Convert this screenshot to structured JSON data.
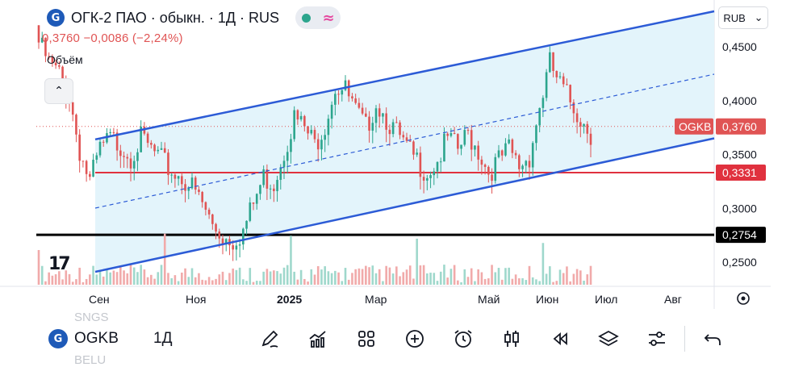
{
  "header": {
    "logo_glyph": "G",
    "title": "ОГК-2 ПАО · обыкн. · 1Д · RUS",
    "status_dot_color": "#2ca58d",
    "wave_glyph": "≈",
    "quote": "0,3760  −0,0086 (−2,24%)",
    "volume_label": "Объём",
    "collapse_glyph": "⌃"
  },
  "currency_selector": {
    "label": "RUB",
    "chevron": "⌄"
  },
  "watermark": "17",
  "ghost_text": {
    "top": "SNGS",
    "bottom": "BELU"
  },
  "chart_data": {
    "type": "candlestick",
    "price_axis": {
      "ticks": [
        {
          "value": 0.45,
          "label": "0,4500"
        },
        {
          "value": 0.4,
          "label": "0,4000"
        },
        {
          "value": 0.35,
          "label": "0,3500"
        },
        {
          "value": 0.3,
          "label": "0,3000"
        },
        {
          "value": 0.25,
          "label": "0,2500"
        }
      ]
    },
    "time_axis": {
      "ticks": [
        {
          "label": "Сен",
          "bold": false
        },
        {
          "label": "Ноя",
          "bold": false
        },
        {
          "label": "2025",
          "bold": true
        },
        {
          "label": "Мар",
          "bold": false
        },
        {
          "label": "Май",
          "bold": false
        },
        {
          "label": "Июн",
          "bold": false
        },
        {
          "label": "Июл",
          "bold": false
        },
        {
          "label": "Авг",
          "bold": false
        }
      ]
    },
    "price_labels": [
      {
        "value": 0.376,
        "text": "0,3760",
        "tag": "OGKB",
        "color": "#e05454"
      },
      {
        "value": 0.3331,
        "text": "0,3331",
        "tag": "",
        "color": "#e0313e"
      },
      {
        "value": 0.2754,
        "text": "0,2754",
        "tag": "",
        "color": "#000000"
      }
    ],
    "horizontal_lines": [
      {
        "value": 0.3331,
        "color": "#e0313e"
      },
      {
        "value": 0.2754,
        "color": "#000000"
      }
    ],
    "channel": {
      "upper": [
        [
          0.364,
          0.487
        ],
        [
          0.443,
          0.476
        ]
      ],
      "lower": [
        [
          0.252,
          0.366
        ],
        [
          0.305,
          0.367
        ]
      ],
      "mid": [
        [
          0.302,
          0.424
        ]
      ],
      "color": "#2c5bd6",
      "fill": "#e3f4fb"
    },
    "candles_close_path": [
      0.46,
      0.44,
      0.43,
      0.41,
      0.36,
      0.33,
      0.36,
      0.37,
      0.365,
      0.355,
      0.37,
      0.36,
      0.35,
      0.34,
      0.335,
      0.325,
      0.31,
      0.29,
      0.28,
      0.277,
      0.285,
      0.31,
      0.335,
      0.33,
      0.36,
      0.39,
      0.38,
      0.365,
      0.385,
      0.42,
      0.415,
      0.395,
      0.38,
      0.405,
      0.39,
      0.375,
      0.36,
      0.35,
      0.34,
      0.35,
      0.37,
      0.36,
      0.375,
      0.36,
      0.34,
      0.35,
      0.36,
      0.345,
      0.355,
      0.4,
      0.44,
      0.42,
      0.405,
      0.39,
      0.376
    ],
    "up_color": "#2ca58d",
    "down_color": "#e05454",
    "volume_color_up": "#9fd8cc",
    "volume_color_down": "#f1aaaa"
  },
  "bottom_bar": {
    "symbol": "OGKB",
    "interval": "1Д",
    "icons": [
      "pen-icon",
      "indicators-icon",
      "grid-icon",
      "plus-circle-icon",
      "alarm-icon",
      "candles-icon",
      "replay-icon",
      "layers-icon",
      "settings-sliders-icon",
      "undo-icon"
    ]
  }
}
